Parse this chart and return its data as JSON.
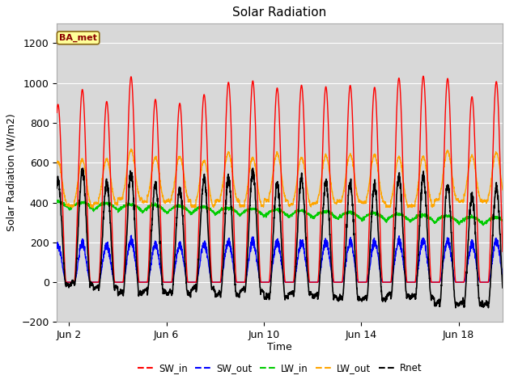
{
  "title": "Solar Radiation",
  "ylabel": "Solar Radiation (W/m2)",
  "xlabel": "Time",
  "ylim": [
    -200,
    1300
  ],
  "yticks": [
    -200,
    0,
    200,
    400,
    600,
    800,
    1000,
    1200
  ],
  "background_color": "#ffffff",
  "plot_bg_color": "#d8d8d8",
  "grid_color": "#ffffff",
  "annotation_text": "BA_met",
  "annotation_bg": "#ffff99",
  "annotation_border": "#8b0000",
  "lines": {
    "SW_in": {
      "color": "#ff0000",
      "lw": 1.0
    },
    "SW_out": {
      "color": "#0000ff",
      "lw": 1.0
    },
    "LW_in": {
      "color": "#00cc00",
      "lw": 1.0
    },
    "LW_out": {
      "color": "#ffa500",
      "lw": 1.0
    },
    "Rnet": {
      "color": "#000000",
      "lw": 1.2
    }
  },
  "xlim": [
    1.5,
    19.8
  ],
  "xtick_positions": [
    2,
    6,
    10,
    14,
    18
  ],
  "xtick_labels": [
    "Jun 2",
    "Jun 6",
    "Jun 10",
    "Jun 14",
    "Jun 18"
  ],
  "n_days": 20,
  "points_per_day": 144
}
